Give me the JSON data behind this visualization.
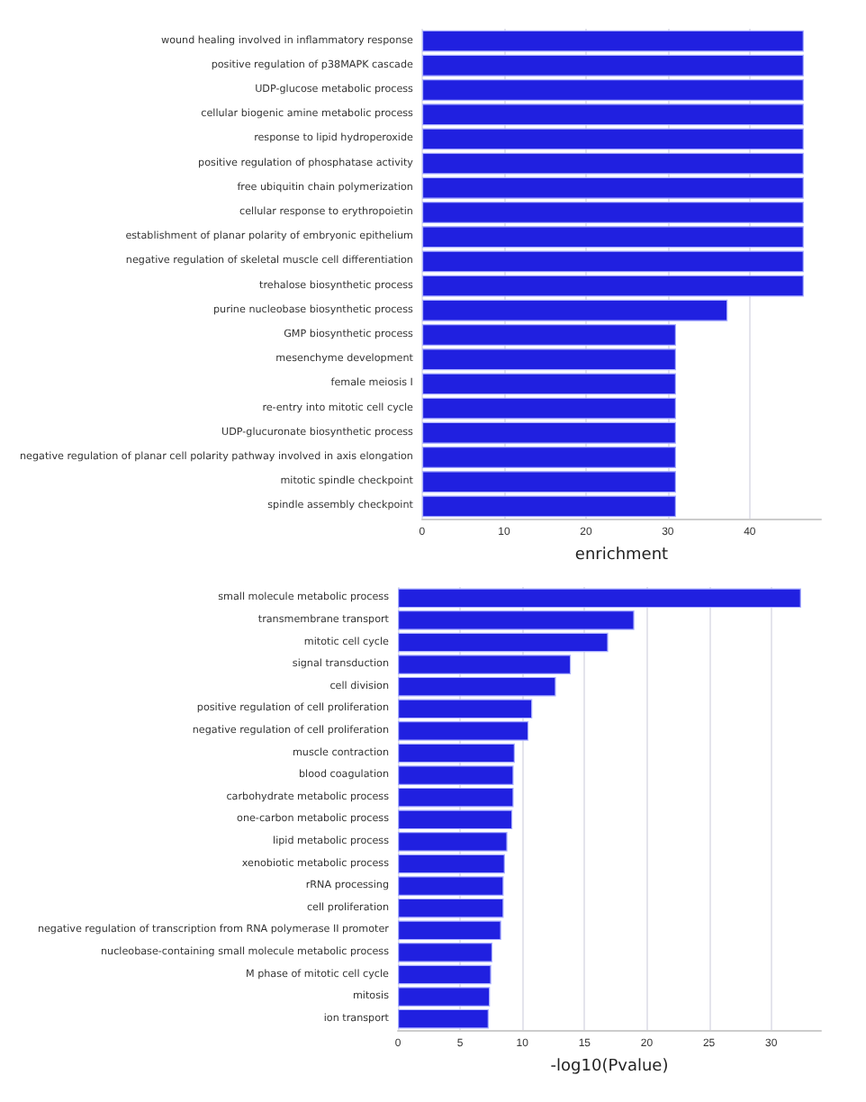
{
  "chart_data": [
    {
      "type": "bar",
      "orientation": "horizontal",
      "xlabel": "enrichment",
      "categories": [
        "wound healing involved in inflammatory response",
        "positive regulation of p38MAPK cascade",
        "UDP-glucose metabolic process",
        "cellular biogenic amine metabolic process",
        "response to lipid hydroperoxide",
        "positive regulation of phosphatase activity",
        "free ubiquitin chain polymerization",
        "cellular response to erythropoietin",
        "establishment of planar polarity of embryonic epithelium",
        "negative regulation of skeletal muscle cell differentiation",
        "trehalose biosynthetic process",
        "purine nucleobase biosynthetic process",
        "GMP biosynthetic process",
        "mesenchyme development",
        "female meiosis I",
        "re-entry into mitotic cell cycle",
        "UDP-glucuronate biosynthetic process",
        "negative regulation of planar cell polarity pathway involved in axis elongation",
        "mitotic spindle checkpoint",
        "spindle assembly checkpoint"
      ],
      "values": [
        46.6,
        46.6,
        46.6,
        46.6,
        46.6,
        46.6,
        46.6,
        46.6,
        46.6,
        46.6,
        46.6,
        37.3,
        31.0,
        31.0,
        31.0,
        31.0,
        31.0,
        31.0,
        31.0,
        31.0
      ],
      "color": "#2020e0",
      "xlim": [
        0,
        48.7
      ],
      "xticks": [
        0,
        10,
        20,
        30,
        40
      ],
      "grid": "x"
    },
    {
      "type": "bar",
      "orientation": "horizontal",
      "xlabel": "-log10(Pvalue)",
      "categories": [
        "small molecule metabolic process",
        "transmembrane transport",
        "mitotic cell cycle",
        "signal transduction",
        "cell division",
        "positive regulation of cell proliferation",
        "negative regulation of cell proliferation",
        "muscle contraction",
        "blood coagulation",
        "carbohydrate metabolic process",
        "one-carbon metabolic process",
        "lipid metabolic process",
        "xenobiotic metabolic process",
        "rRNA processing",
        "cell proliferation",
        "negative regulation of transcription from RNA polymerase II promoter",
        "nucleobase-containing small molecule metabolic process",
        "M phase of mitotic cell cycle",
        "mitosis",
        "ion transport"
      ],
      "values": [
        32.4,
        19.0,
        16.9,
        13.9,
        12.7,
        10.8,
        10.5,
        9.4,
        9.3,
        9.3,
        9.2,
        8.8,
        8.6,
        8.5,
        8.5,
        8.3,
        7.6,
        7.5,
        7.4,
        7.3
      ],
      "color": "#2020e0",
      "xlim": [
        0,
        34
      ],
      "xticks": [
        0,
        5,
        10,
        15,
        20,
        25,
        30
      ],
      "grid": "x"
    }
  ]
}
